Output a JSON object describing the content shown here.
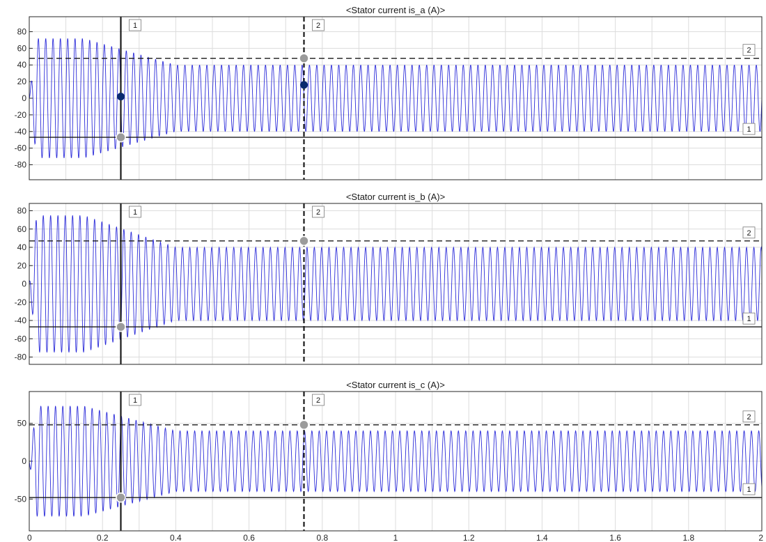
{
  "chart_data": [
    {
      "type": "line",
      "title": "<Stator current is_a (A)>",
      "xlim": [
        0,
        2
      ],
      "ylim": [
        -98,
        98
      ],
      "yticks": [
        "80",
        "60",
        "40",
        "20",
        "0",
        "-20",
        "-40",
        "-60",
        "-80"
      ],
      "ytick_values": [
        80,
        60,
        40,
        20,
        0,
        -20,
        -40,
        -60,
        -80
      ],
      "grid": true,
      "series": [
        {
          "transient_amplitude": 72,
          "steady_amplitude": 40,
          "settle_time": 0.4,
          "frequency_hz": 50,
          "color": "#2b2bd9"
        }
      ],
      "vertical_cursors": [
        {
          "label": "1",
          "x": 0.25,
          "style": "solid"
        },
        {
          "label": "2",
          "x": 0.75,
          "style": "dashed"
        }
      ],
      "horizontal_cursors": [
        {
          "label": "2",
          "y": 48,
          "style": "dashed"
        },
        {
          "label": "1",
          "y": -47,
          "style": "solid"
        }
      ],
      "markers": [
        {
          "x": 0.25,
          "y": 2,
          "color": "#0a2a6e"
        },
        {
          "x": 0.75,
          "y": 16,
          "color": "#0a2a6e"
        },
        {
          "x": 0.25,
          "y": -47,
          "color": "#9b9b9b"
        },
        {
          "x": 0.75,
          "y": 48,
          "color": "#9b9b9b"
        }
      ]
    },
    {
      "type": "line",
      "title": "<Stator current is_b (A)>",
      "xlim": [
        0,
        2
      ],
      "ylim": [
        -88,
        88
      ],
      "yticks": [
        "80",
        "60",
        "40",
        "20",
        "0",
        "-20",
        "-40",
        "-60",
        "-80"
      ],
      "ytick_values": [
        80,
        60,
        40,
        20,
        0,
        -20,
        -40,
        -60,
        -80
      ],
      "grid": true,
      "series": [
        {
          "transient_amplitude": 75,
          "steady_amplitude": 40,
          "settle_time": 0.4,
          "frequency_hz": 50,
          "color": "#2b2bd9"
        }
      ],
      "vertical_cursors": [
        {
          "label": "1",
          "x": 0.25,
          "style": "solid"
        },
        {
          "label": "2",
          "x": 0.75,
          "style": "dashed"
        }
      ],
      "horizontal_cursors": [
        {
          "label": "2",
          "y": 47,
          "style": "dashed"
        },
        {
          "label": "1",
          "y": -47,
          "style": "solid"
        }
      ],
      "markers": [
        {
          "x": 0.25,
          "y": -47,
          "color": "#9b9b9b"
        },
        {
          "x": 0.75,
          "y": 47,
          "color": "#9b9b9b"
        }
      ]
    },
    {
      "type": "line",
      "title": "<Stator current is_c (A)>",
      "xlim": [
        0,
        2
      ],
      "ylim": [
        -92,
        92
      ],
      "yticks": [
        "50",
        "0",
        "-50"
      ],
      "ytick_values": [
        50,
        0,
        -50
      ],
      "xticks": [
        "0",
        "0.2",
        "0.4",
        "0.6",
        "0.8",
        "1",
        "1.2",
        "1.4",
        "1.6",
        "1.8",
        "2"
      ],
      "xtick_values": [
        0,
        0.2,
        0.4,
        0.6,
        0.8,
        1,
        1.2,
        1.4,
        1.6,
        1.8,
        2
      ],
      "grid": true,
      "series": [
        {
          "transient_amplitude": 73,
          "steady_amplitude": 40,
          "settle_time": 0.4,
          "frequency_hz": 50,
          "color": "#2b2bd9"
        }
      ],
      "vertical_cursors": [
        {
          "label": "1",
          "x": 0.25,
          "style": "solid"
        },
        {
          "label": "2",
          "x": 0.75,
          "style": "dashed"
        }
      ],
      "horizontal_cursors": [
        {
          "label": "2",
          "y": 48,
          "style": "dashed"
        },
        {
          "label": "1",
          "y": -48,
          "style": "solid"
        }
      ],
      "markers": [
        {
          "x": 0.25,
          "y": -48,
          "color": "#9b9b9b"
        },
        {
          "x": 0.75,
          "y": 48,
          "color": "#9b9b9b"
        }
      ]
    }
  ]
}
